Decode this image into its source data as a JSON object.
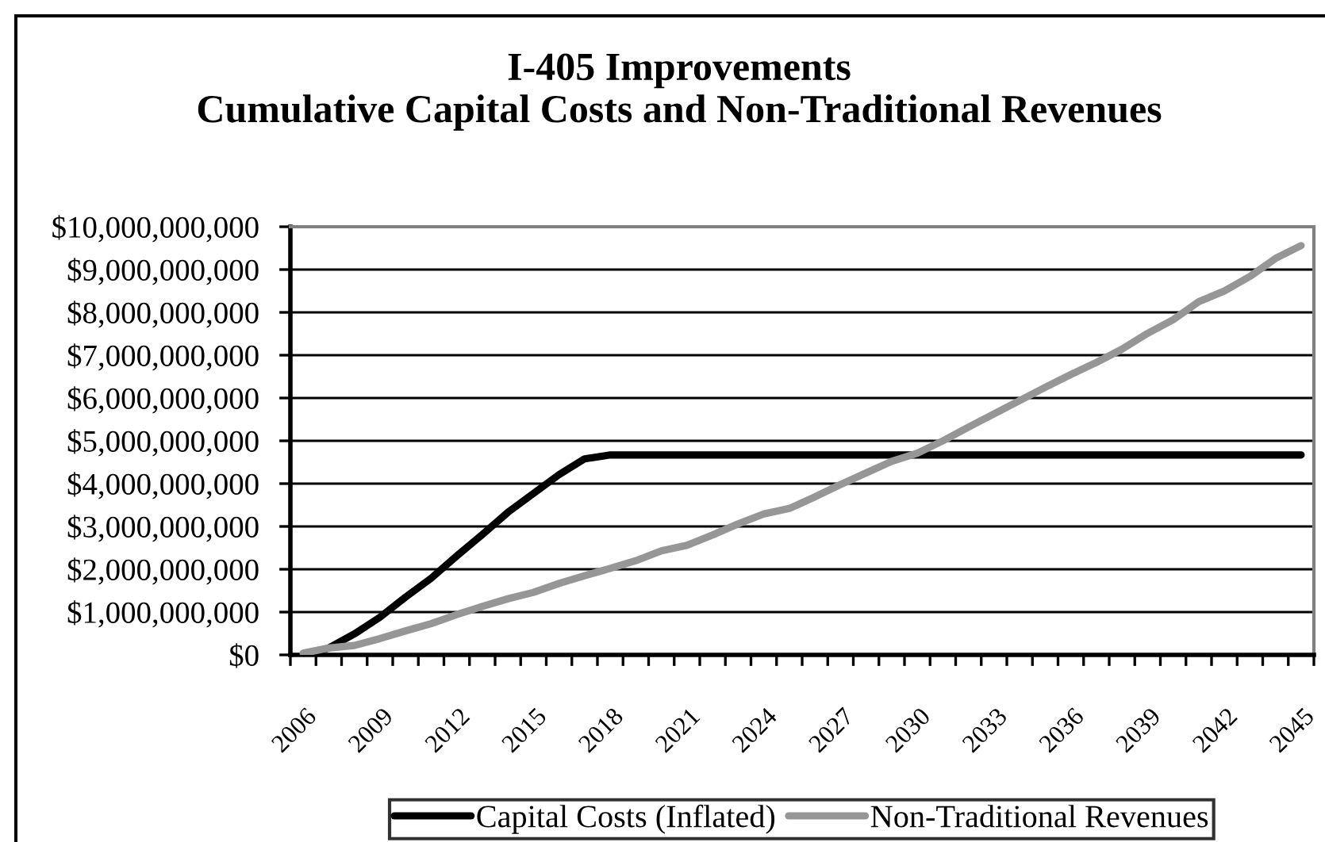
{
  "chart_data": {
    "type": "line",
    "title": "I-405 Improvements\nCumulative Capital Costs and Non-Traditional Revenues",
    "categories": [
      "2006",
      null,
      null,
      "2009",
      null,
      null,
      "2012",
      null,
      null,
      "2015",
      null,
      null,
      "2018",
      null,
      null,
      "2021",
      null,
      null,
      "2024",
      null,
      null,
      "2027",
      null,
      null,
      "2030",
      null,
      null,
      "2033",
      null,
      null,
      "2036",
      null,
      null,
      "2039",
      null,
      null,
      "2042",
      null,
      null,
      "2045"
    ],
    "series": [
      {
        "name": "Capital Costs (Inflated)",
        "color": "#000000",
        "values": [
          0,
          160000000,
          490000000,
          880000000,
          1350000000,
          1790000000,
          2310000000,
          2810000000,
          3330000000,
          3770000000,
          4210000000,
          4580000000,
          4670000000,
          4670000000,
          4670000000,
          4670000000,
          4670000000,
          4670000000,
          4670000000,
          4670000000,
          4670000000,
          4670000000,
          4670000000,
          4670000000,
          4670000000,
          4670000000,
          4670000000,
          4670000000,
          4670000000,
          4670000000,
          4670000000,
          4670000000,
          4670000000,
          4670000000,
          4670000000,
          4670000000,
          4670000000,
          4670000000,
          4670000000,
          4670000000
        ]
      },
      {
        "name": "Non-Traditional Revenues",
        "color": "#969696",
        "values": [
          40000000,
          160000000,
          220000000,
          380000000,
          560000000,
          730000000,
          940000000,
          1130000000,
          1310000000,
          1460000000,
          1670000000,
          1850000000,
          2020000000,
          2200000000,
          2430000000,
          2560000000,
          2800000000,
          3060000000,
          3290000000,
          3420000000,
          3690000000,
          3980000000,
          4250000000,
          4520000000,
          4710000000,
          5000000000,
          5320000000,
          5630000000,
          5940000000,
          6250000000,
          6550000000,
          6830000000,
          7140000000,
          7510000000,
          7830000000,
          8250000000,
          8500000000,
          8840000000,
          9260000000,
          9560000000
        ]
      }
    ],
    "ylim": [
      0,
      10000000000
    ],
    "yticks": [
      {
        "value": 0,
        "label": "$0"
      },
      {
        "value": 1000000000,
        "label": "$1,000,000,000"
      },
      {
        "value": 2000000000,
        "label": "$2,000,000,000"
      },
      {
        "value": 3000000000,
        "label": "$3,000,000,000"
      },
      {
        "value": 4000000000,
        "label": "$4,000,000,000"
      },
      {
        "value": 5000000000,
        "label": "$5,000,000,000"
      },
      {
        "value": 6000000000,
        "label": "$6,000,000,000"
      },
      {
        "value": 7000000000,
        "label": "$7,000,000,000"
      },
      {
        "value": 8000000000,
        "label": "$8,000,000,000"
      },
      {
        "value": 9000000000,
        "label": "$9,000,000,000"
      },
      {
        "value": 10000000000,
        "label": "$10,000,000,000"
      }
    ],
    "grid": "y",
    "legend": "bottom",
    "line_style": "solid"
  }
}
